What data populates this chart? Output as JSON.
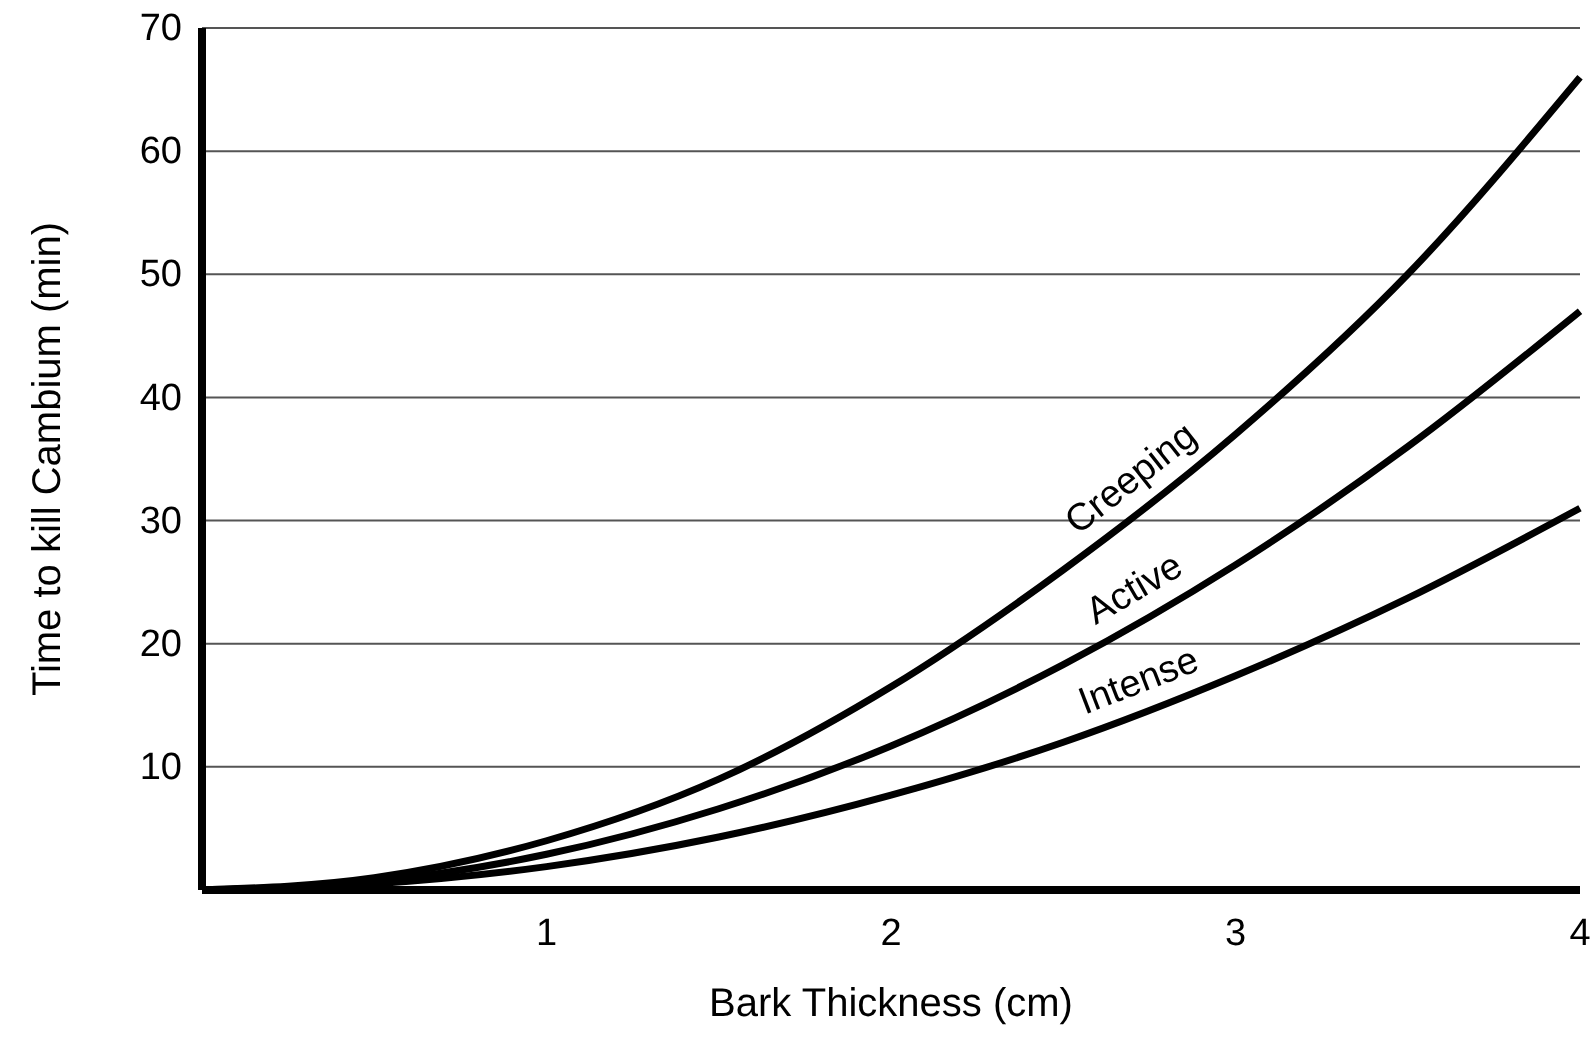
{
  "chart_data": {
    "type": "line",
    "xlabel": "Bark Thickness (cm)",
    "ylabel": "Time to kill Cambium (min)",
    "x": [
      0,
      0.5,
      1,
      1.5,
      2,
      2.5,
      3,
      3.5,
      4
    ],
    "series": [
      {
        "name": "Creeping",
        "color": "#000000",
        "values": [
          0,
          1,
          4,
          9,
          16.5,
          26,
          37,
          50,
          66
        ]
      },
      {
        "name": "Active",
        "color": "#000000",
        "values": [
          0,
          0.7,
          2.9,
          6.6,
          11.7,
          18.3,
          26.4,
          36,
          47
        ]
      },
      {
        "name": "Intense",
        "color": "#000000",
        "values": [
          0,
          0.5,
          1.9,
          4.3,
          7.7,
          12,
          17.4,
          23.7,
          31
        ]
      }
    ],
    "xlim": [
      0,
      4
    ],
    "ylim": [
      0,
      70
    ],
    "xticks": [
      1,
      2,
      3,
      4
    ],
    "yticks": [
      10,
      20,
      30,
      40,
      50,
      60,
      70
    ],
    "grid": "y",
    "marker": "none",
    "line_style": "solid",
    "legend": false
  }
}
